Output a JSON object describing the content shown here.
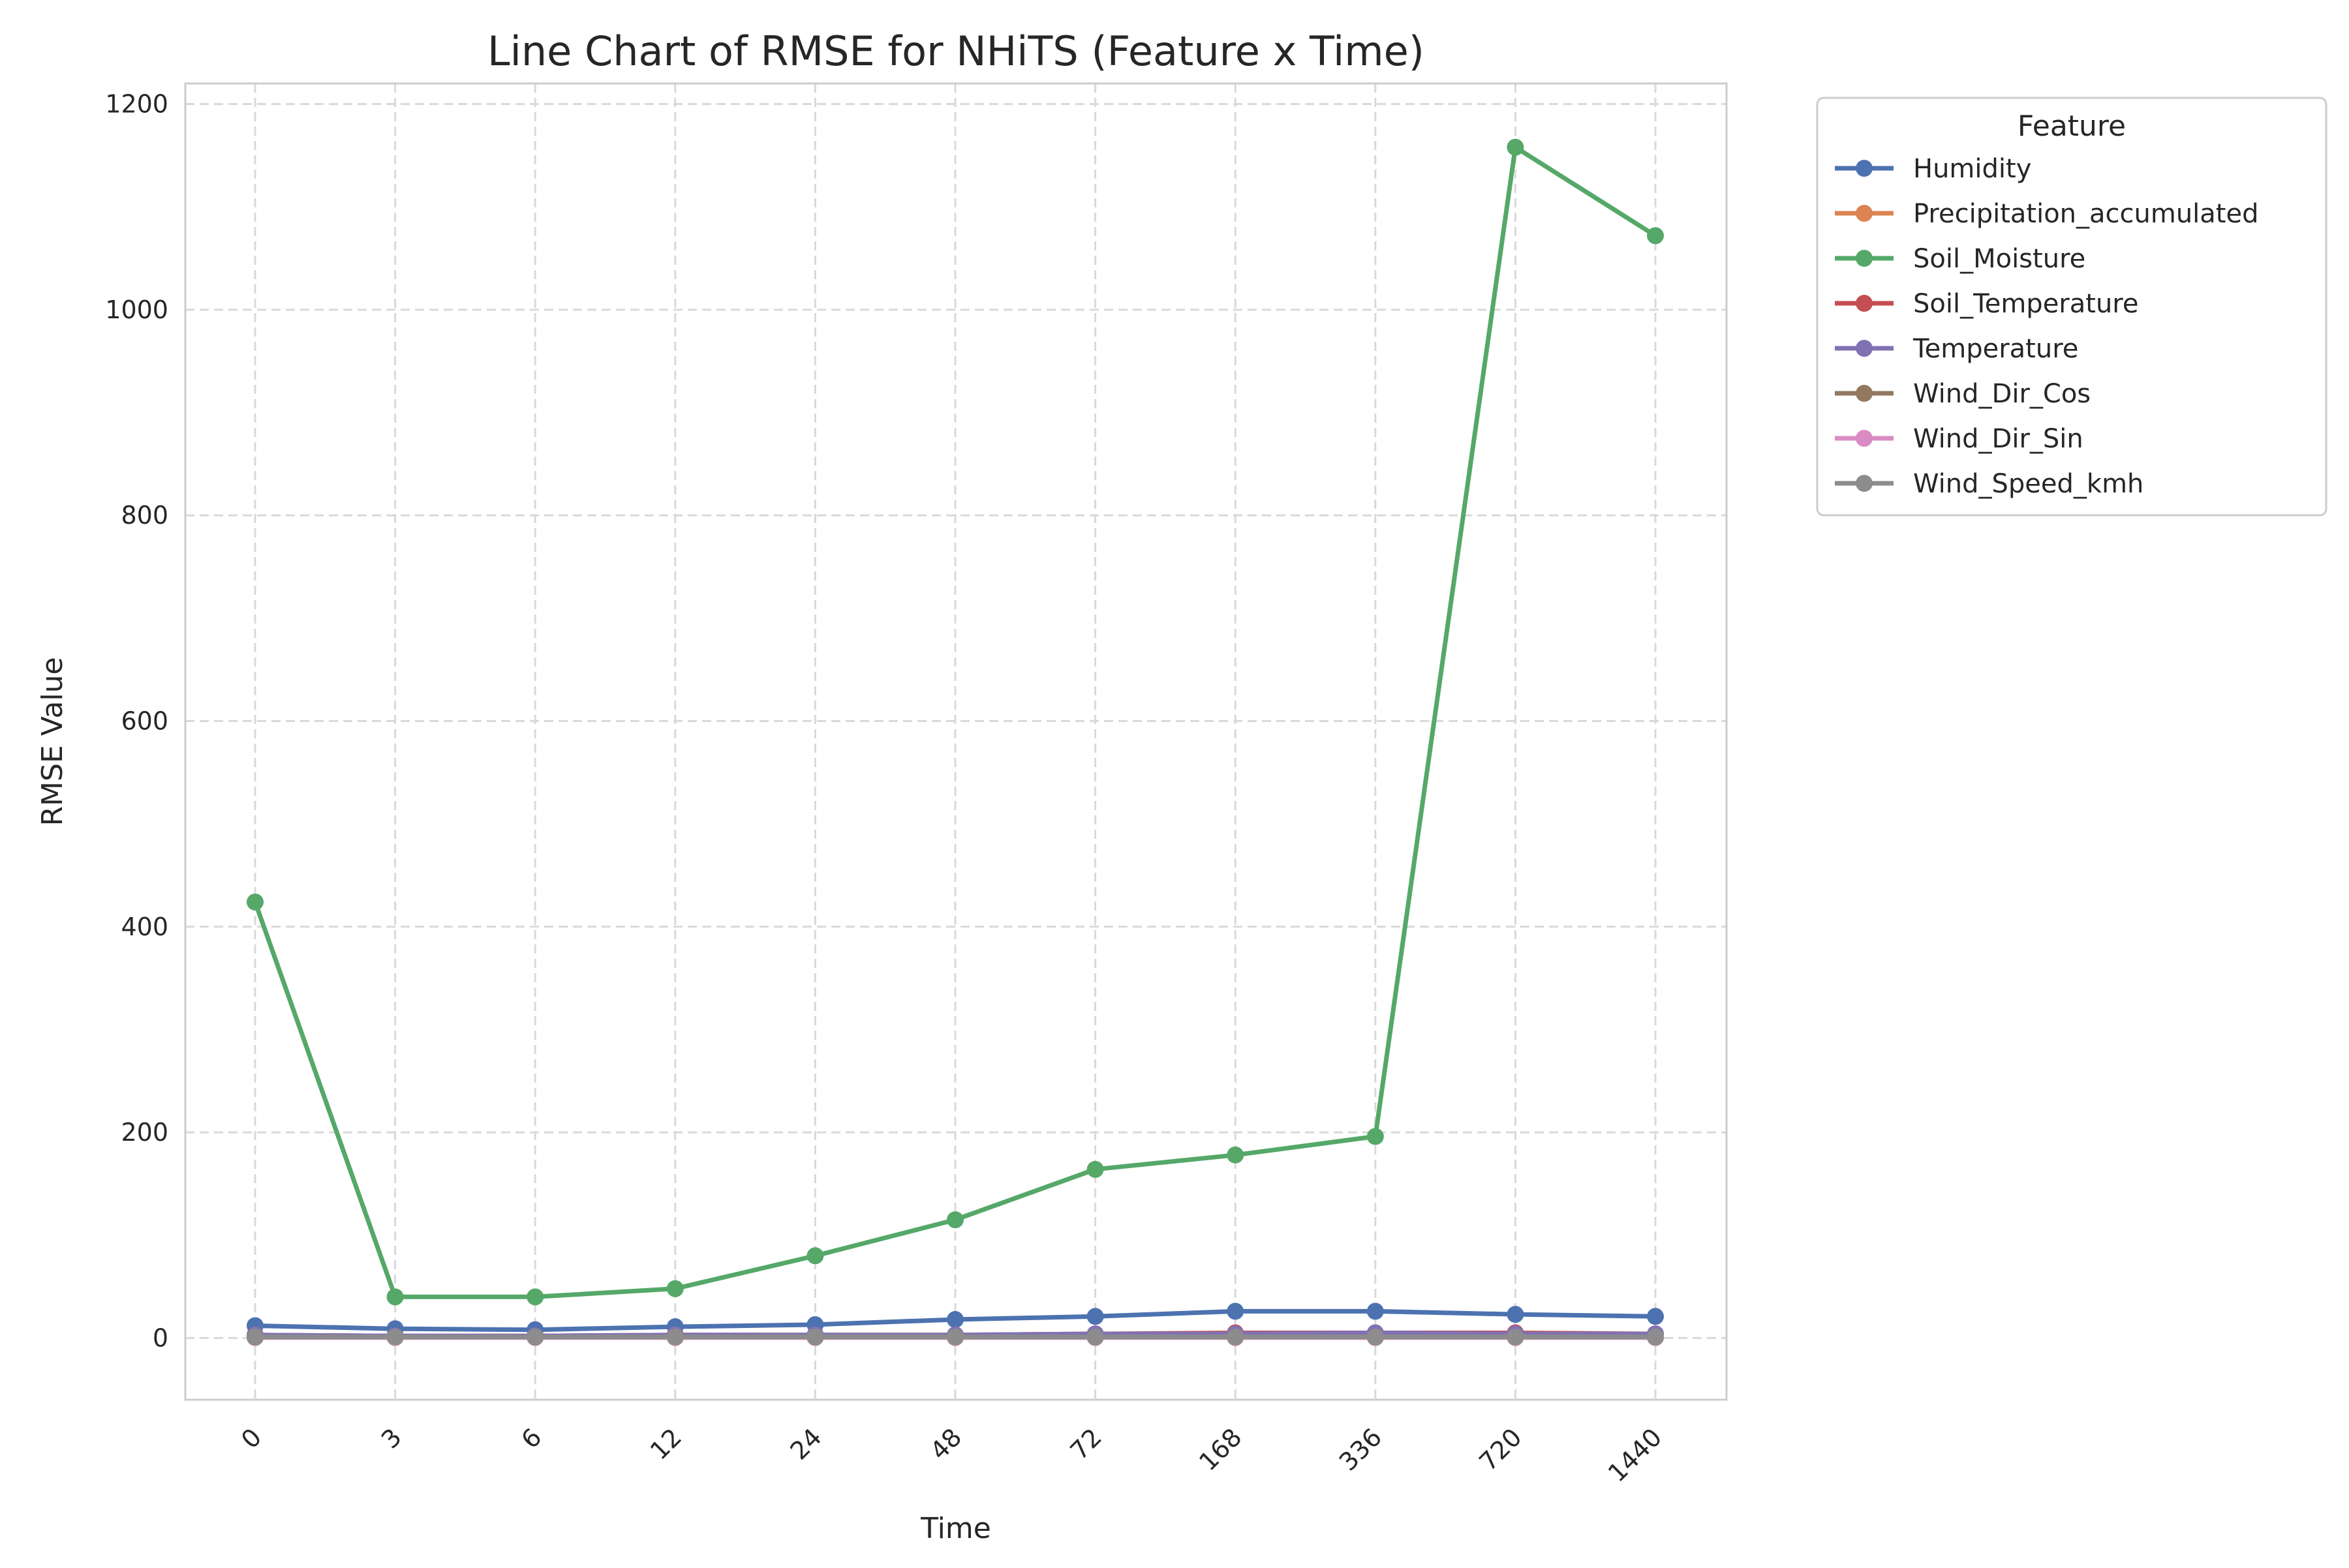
{
  "chart_data": {
    "type": "line",
    "title": "Line Chart of RMSE for NHiTS (Feature x Time)",
    "xlabel": "Time",
    "ylabel": "RMSE Value",
    "categories": [
      "0",
      "3",
      "6",
      "12",
      "24",
      "48",
      "72",
      "168",
      "336",
      "720",
      "1440"
    ],
    "ylim": [
      -60,
      1220
    ],
    "yticks": [
      0,
      200,
      400,
      600,
      800,
      1000,
      1200
    ],
    "grid": true,
    "grid_style": "dashed",
    "legend_title": "Feature",
    "legend_position": "outside-top-right",
    "series": [
      {
        "name": "Humidity",
        "color": "#4c72b0",
        "values": [
          12,
          9,
          8,
          11,
          13,
          18,
          21,
          26,
          26,
          23,
          21
        ]
      },
      {
        "name": "Precipitation_accumulated",
        "color": "#dd8452",
        "values": [
          1,
          1,
          1,
          1,
          1,
          1,
          1,
          1,
          1,
          1,
          1
        ]
      },
      {
        "name": "Soil_Moisture",
        "color": "#55a868",
        "values": [
          424,
          40,
          40,
          48,
          80,
          115,
          164,
          178,
          196,
          1158,
          1072
        ]
      },
      {
        "name": "Soil_Temperature",
        "color": "#c44e52",
        "values": [
          3,
          2,
          2,
          3,
          3,
          3,
          4,
          5,
          5,
          5,
          4
        ]
      },
      {
        "name": "Temperature",
        "color": "#8172b3",
        "values": [
          3,
          2,
          2,
          3,
          3,
          3,
          4,
          4,
          5,
          4,
          4
        ]
      },
      {
        "name": "Wind_Dir_Cos",
        "color": "#937860",
        "values": [
          0.5,
          0.5,
          0.5,
          0.5,
          0.5,
          0.5,
          0.5,
          0.5,
          0.5,
          0.5,
          0.5
        ]
      },
      {
        "name": "Wind_Dir_Sin",
        "color": "#da8bc3",
        "values": [
          0.5,
          0.5,
          0.5,
          0.5,
          0.5,
          0.5,
          0.5,
          0.5,
          0.5,
          0.5,
          0.5
        ]
      },
      {
        "name": "Wind_Speed_kmh",
        "color": "#8c8c8c",
        "values": [
          1,
          1,
          1,
          1,
          1,
          1,
          1,
          1,
          1,
          1,
          1
        ]
      }
    ]
  }
}
